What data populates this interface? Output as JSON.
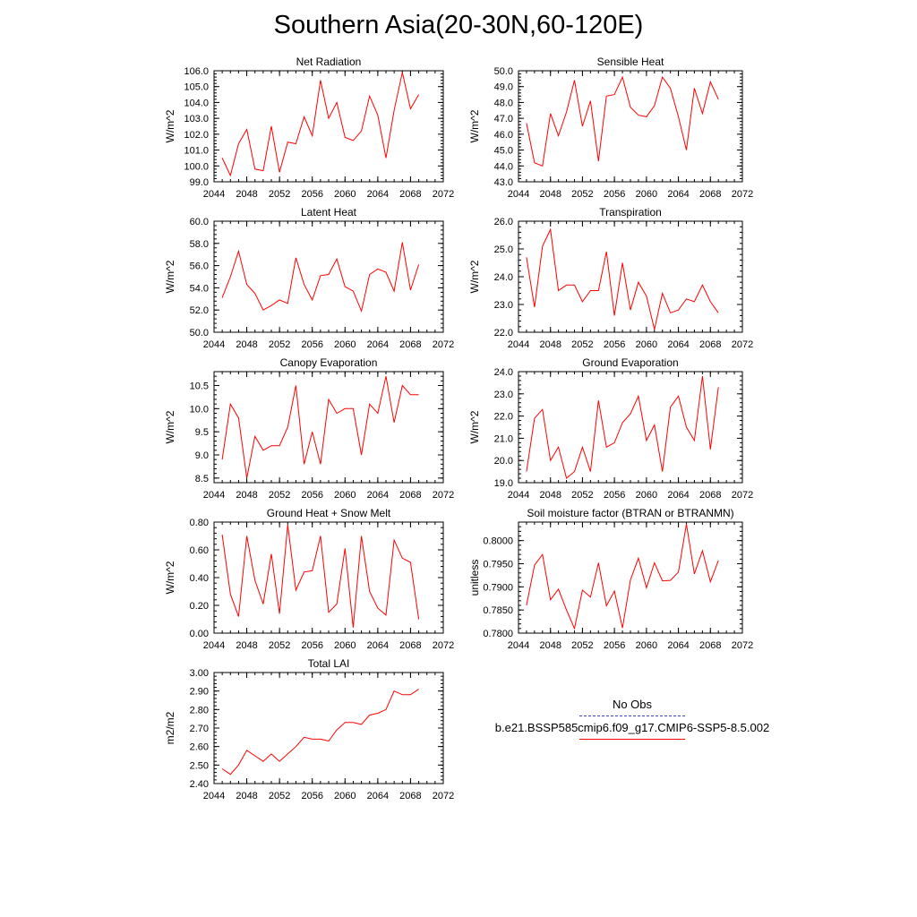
{
  "title": "Southern Asia(20-30N,60-120E)",
  "line_color": "#ff0000",
  "obs_color": "#3f3fbf",
  "legend": [
    {
      "label": "No Obs",
      "style": "dashed",
      "color": "#3f3fbf"
    },
    {
      "label": "b.e21.BSSP585cmip6.f09_g17.CMIP6-SSP5-8.5.002",
      "style": "solid",
      "color": "#ff0000"
    }
  ],
  "chart_data": [
    {
      "type": "line",
      "title": "Net Radiation",
      "ylabel": "W/m^2",
      "xlim": [
        2044,
        2072
      ],
      "ylim": [
        99.0,
        106.0
      ],
      "xticks": [
        "2044",
        "2048",
        "2052",
        "2056",
        "2060",
        "2064",
        "2068",
        "2072"
      ],
      "yticks": [
        "99.0",
        "100.0",
        "101.0",
        "102.0",
        "103.0",
        "104.0",
        "105.0",
        "106.0"
      ],
      "x": [
        2045,
        2046,
        2047,
        2048,
        2049,
        2050,
        2051,
        2052,
        2053,
        2054,
        2055,
        2056,
        2057,
        2058,
        2059,
        2060,
        2061,
        2062,
        2063,
        2064,
        2065,
        2066,
        2067,
        2068,
        2069
      ],
      "series": [
        {
          "values": [
            100.5,
            99.4,
            101.4,
            102.3,
            99.8,
            99.7,
            102.5,
            99.6,
            101.5,
            101.4,
            103.1,
            101.9,
            105.4,
            103.0,
            104.0,
            101.8,
            101.6,
            102.2,
            104.4,
            103.2,
            100.5,
            103.5,
            105.9,
            103.6,
            104.5
          ]
        }
      ]
    },
    {
      "type": "line",
      "title": "Sensible Heat",
      "ylabel": "W/m^2",
      "xlim": [
        2044,
        2072
      ],
      "ylim": [
        43.0,
        50.0
      ],
      "xticks": [
        "2044",
        "2048",
        "2052",
        "2056",
        "2060",
        "2064",
        "2068",
        "2072"
      ],
      "yticks": [
        "43.0",
        "44.0",
        "45.0",
        "46.0",
        "47.0",
        "48.0",
        "49.0",
        "50.0"
      ],
      "x": [
        2045,
        2046,
        2047,
        2048,
        2049,
        2050,
        2051,
        2052,
        2053,
        2054,
        2055,
        2056,
        2057,
        2058,
        2059,
        2060,
        2061,
        2062,
        2063,
        2064,
        2065,
        2066,
        2067,
        2068,
        2069
      ],
      "series": [
        {
          "values": [
            46.7,
            44.2,
            44.0,
            47.3,
            45.9,
            47.4,
            49.4,
            46.5,
            48.1,
            44.3,
            48.4,
            48.5,
            49.6,
            47.7,
            47.2,
            47.1,
            47.8,
            49.6,
            48.9,
            47.1,
            45.0,
            48.9,
            47.3,
            49.3,
            48.2
          ]
        }
      ]
    },
    {
      "type": "line",
      "title": "Latent Heat",
      "ylabel": "W/m^2",
      "xlim": [
        2044,
        2072
      ],
      "ylim": [
        50.0,
        60.0
      ],
      "xticks": [
        "2044",
        "2048",
        "2052",
        "2056",
        "2060",
        "2064",
        "2068",
        "2072"
      ],
      "yticks": [
        "50.0",
        "52.0",
        "54.0",
        "56.0",
        "58.0",
        "60.0"
      ],
      "x": [
        2045,
        2046,
        2047,
        2048,
        2049,
        2050,
        2051,
        2052,
        2053,
        2054,
        2055,
        2056,
        2057,
        2058,
        2059,
        2060,
        2061,
        2062,
        2063,
        2064,
        2065,
        2066,
        2067,
        2068,
        2069
      ],
      "series": [
        {
          "values": [
            53.1,
            55.0,
            57.3,
            54.3,
            53.5,
            52.0,
            52.4,
            52.9,
            52.6,
            56.7,
            54.3,
            52.9,
            55.1,
            55.2,
            56.6,
            54.1,
            53.7,
            51.9,
            55.2,
            55.7,
            55.4,
            53.7,
            58.1,
            53.8,
            56.1
          ]
        }
      ]
    },
    {
      "type": "line",
      "title": "Transpiration",
      "ylabel": "W/m^2",
      "xlim": [
        2044,
        2072
      ],
      "ylim": [
        22.0,
        26.0
      ],
      "xticks": [
        "2044",
        "2048",
        "2052",
        "2056",
        "2060",
        "2064",
        "2068",
        "2072"
      ],
      "yticks": [
        "22.0",
        "23.0",
        "24.0",
        "25.0",
        "26.0"
      ],
      "x": [
        2045,
        2046,
        2047,
        2048,
        2049,
        2050,
        2051,
        2052,
        2053,
        2054,
        2055,
        2056,
        2057,
        2058,
        2059,
        2060,
        2061,
        2062,
        2063,
        2064,
        2065,
        2066,
        2067,
        2068,
        2069
      ],
      "series": [
        {
          "values": [
            24.7,
            22.9,
            25.1,
            25.7,
            23.5,
            23.7,
            23.7,
            23.1,
            23.5,
            23.5,
            24.9,
            22.6,
            24.5,
            22.8,
            23.8,
            23.3,
            22.1,
            23.4,
            22.7,
            22.8,
            23.2,
            23.1,
            23.7,
            23.1,
            22.7
          ]
        }
      ]
    },
    {
      "type": "line",
      "title": "Canopy Evaporation",
      "ylabel": "W/m^2",
      "xlim": [
        2044,
        2072
      ],
      "ylim": [
        8.4,
        10.8
      ],
      "xticks": [
        "2044",
        "2048",
        "2052",
        "2056",
        "2060",
        "2064",
        "2068",
        "2072"
      ],
      "yticks": [
        "8.5",
        "9.0",
        "9.5",
        "10.0",
        "10.5"
      ],
      "x": [
        2045,
        2046,
        2047,
        2048,
        2049,
        2050,
        2051,
        2052,
        2053,
        2054,
        2055,
        2056,
        2057,
        2058,
        2059,
        2060,
        2061,
        2062,
        2063,
        2064,
        2065,
        2066,
        2067,
        2068,
        2069
      ],
      "series": [
        {
          "values": [
            8.9,
            10.1,
            9.8,
            8.5,
            9.4,
            9.1,
            9.2,
            9.2,
            9.6,
            10.5,
            8.8,
            9.5,
            8.8,
            10.2,
            9.9,
            10.0,
            10.0,
            9.0,
            10.1,
            9.9,
            10.7,
            9.7,
            10.5,
            10.3,
            10.3
          ]
        }
      ]
    },
    {
      "type": "line",
      "title": "Ground Evaporation",
      "ylabel": "W/m^2",
      "xlim": [
        2044,
        2072
      ],
      "ylim": [
        19.0,
        24.0
      ],
      "xticks": [
        "2044",
        "2048",
        "2052",
        "2056",
        "2060",
        "2064",
        "2068",
        "2072"
      ],
      "yticks": [
        "19.0",
        "20.0",
        "21.0",
        "22.0",
        "23.0",
        "24.0"
      ],
      "x": [
        2045,
        2046,
        2047,
        2048,
        2049,
        2050,
        2051,
        2052,
        2053,
        2054,
        2055,
        2056,
        2057,
        2058,
        2059,
        2060,
        2061,
        2062,
        2063,
        2064,
        2065,
        2066,
        2067,
        2068,
        2069
      ],
      "series": [
        {
          "values": [
            19.5,
            21.9,
            22.3,
            20.0,
            20.6,
            19.2,
            19.5,
            20.6,
            19.5,
            22.7,
            20.6,
            20.8,
            21.7,
            22.1,
            22.9,
            20.9,
            21.6,
            19.5,
            22.4,
            22.9,
            21.5,
            20.9,
            23.8,
            20.5,
            23.3
          ]
        }
      ]
    },
    {
      "type": "line",
      "title": "Ground Heat + Snow Melt",
      "ylabel": "W/m^2",
      "xlim": [
        2044,
        2072
      ],
      "ylim": [
        0.0,
        0.8
      ],
      "xticks": [
        "2044",
        "2048",
        "2052",
        "2056",
        "2060",
        "2064",
        "2068",
        "2072"
      ],
      "yticks": [
        "0.00",
        "0.20",
        "0.40",
        "0.60",
        "0.80"
      ],
      "x": [
        2045,
        2046,
        2047,
        2048,
        2049,
        2050,
        2051,
        2052,
        2053,
        2054,
        2055,
        2056,
        2057,
        2058,
        2059,
        2060,
        2061,
        2062,
        2063,
        2064,
        2065,
        2066,
        2067,
        2068,
        2069
      ],
      "series": [
        {
          "values": [
            0.71,
            0.28,
            0.12,
            0.7,
            0.38,
            0.21,
            0.57,
            0.14,
            0.78,
            0.31,
            0.44,
            0.45,
            0.7,
            0.15,
            0.21,
            0.61,
            0.04,
            0.7,
            0.3,
            0.18,
            0.13,
            0.67,
            0.54,
            0.51,
            0.1
          ]
        }
      ]
    },
    {
      "type": "line",
      "title": "Soil moisture factor (BTRAN or BTRANMN)",
      "ylabel": "unitless",
      "xlim": [
        2044,
        2072
      ],
      "ylim": [
        0.78,
        0.804
      ],
      "xticks": [
        "2044",
        "2048",
        "2052",
        "2056",
        "2060",
        "2064",
        "2068",
        "2072"
      ],
      "yticks": [
        "0.7800",
        "0.7850",
        "0.7900",
        "0.7950",
        "0.8000"
      ],
      "x": [
        2045,
        2046,
        2047,
        2048,
        2049,
        2050,
        2051,
        2052,
        2053,
        2054,
        2055,
        2056,
        2057,
        2058,
        2059,
        2060,
        2061,
        2062,
        2063,
        2064,
        2065,
        2066,
        2067,
        2068,
        2069
      ],
      "series": [
        {
          "values": [
            0.786,
            0.7947,
            0.797,
            0.7872,
            0.7895,
            0.785,
            0.781,
            0.7893,
            0.7878,
            0.7952,
            0.7859,
            0.7891,
            0.7811,
            0.7915,
            0.7962,
            0.7898,
            0.7952,
            0.7913,
            0.7914,
            0.7932,
            0.8036,
            0.7928,
            0.7978,
            0.7911,
            0.7957
          ]
        }
      ]
    },
    {
      "type": "line",
      "title": "Total LAI",
      "ylabel": "m2/m2",
      "xlim": [
        2044,
        2072
      ],
      "ylim": [
        2.4,
        3.0
      ],
      "xticks": [
        "2044",
        "2048",
        "2052",
        "2056",
        "2060",
        "2064",
        "2068",
        "2072"
      ],
      "yticks": [
        "2.40",
        "2.50",
        "2.60",
        "2.70",
        "2.80",
        "2.90",
        "3.00"
      ],
      "x": [
        2045,
        2046,
        2047,
        2048,
        2049,
        2050,
        2051,
        2052,
        2053,
        2054,
        2055,
        2056,
        2057,
        2058,
        2059,
        2060,
        2061,
        2062,
        2063,
        2064,
        2065,
        2066,
        2067,
        2068,
        2069
      ],
      "series": [
        {
          "values": [
            2.48,
            2.45,
            2.5,
            2.58,
            2.55,
            2.52,
            2.56,
            2.52,
            2.56,
            2.6,
            2.65,
            2.64,
            2.64,
            2.63,
            2.69,
            2.73,
            2.73,
            2.72,
            2.77,
            2.78,
            2.8,
            2.9,
            2.88,
            2.88,
            2.91
          ]
        }
      ]
    }
  ]
}
